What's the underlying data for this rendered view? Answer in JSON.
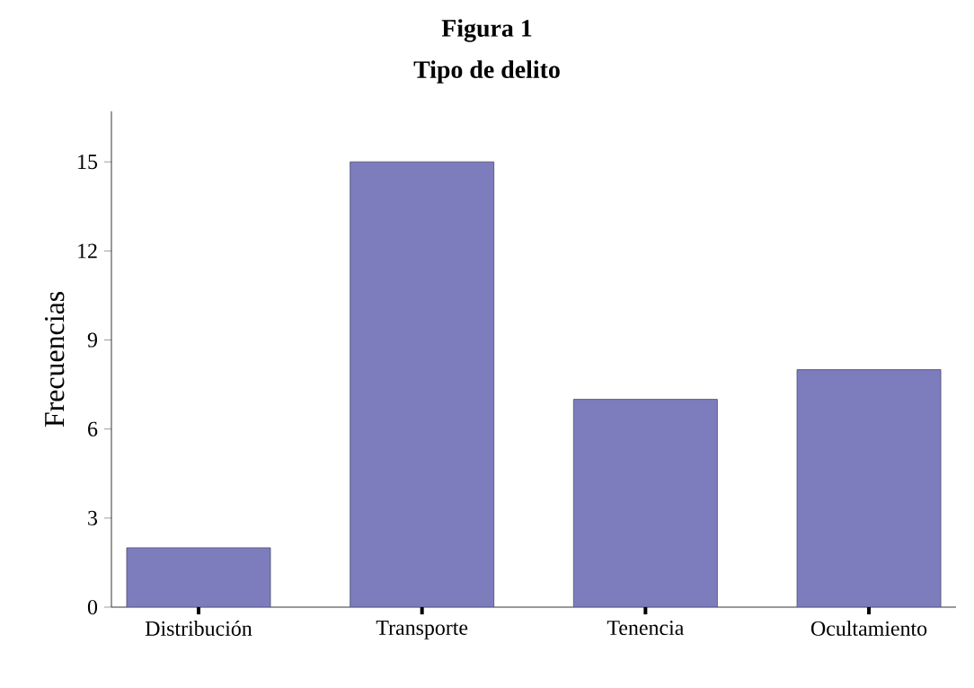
{
  "chart_data": {
    "type": "bar",
    "title": "Figura 1",
    "subtitle": "Tipo de delito",
    "ylabel": "Frecuencias",
    "categories": [
      "Distribución",
      "Transporte",
      "Tenencia",
      "Ocultamiento"
    ],
    "values": [
      2,
      15,
      7,
      8
    ],
    "color": "#7d7dbd",
    "ylim": [
      0,
      16.7
    ],
    "yticks": [
      0,
      3,
      6,
      9,
      12,
      15
    ],
    "grid": false
  }
}
